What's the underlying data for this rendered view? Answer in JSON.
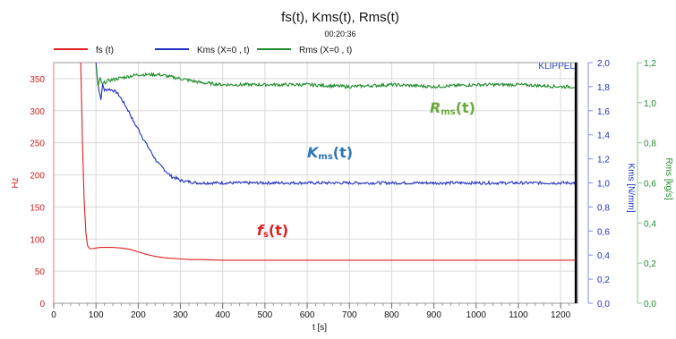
{
  "chart_data": {
    "type": "line",
    "title": "fs(t), Kms(t), Rms(t)",
    "subtitle": "00:20:36",
    "xlabel": "t [s]",
    "x_ticks": [
      "0",
      "100",
      "200",
      "300",
      "400",
      "500",
      "600",
      "700",
      "800",
      "900",
      "1000",
      "1100",
      "1200"
    ],
    "xlim": [
      0,
      1240
    ],
    "grid": true,
    "legend_position": "top",
    "brand": "KLIPPEL",
    "cursor_x": 1236,
    "axes": {
      "left": {
        "label": "Hz",
        "color": "#d42020",
        "range": [
          0,
          375
        ],
        "ticks": [
          "0",
          "50",
          "100",
          "150",
          "200",
          "250",
          "300",
          "350"
        ]
      },
      "right1": {
        "label": "Kms [N/mm]",
        "color": "#1f2fbf",
        "range": [
          0,
          2.0
        ],
        "ticks": [
          "0,0",
          "0,2",
          "0,4",
          "0,6",
          "0,8",
          "1,0",
          "1,2",
          "1,4",
          "1,6",
          "1,8",
          "2,0"
        ]
      },
      "right2": {
        "label": "Rms [kg/s]",
        "color": "#1e8a2a",
        "range": [
          0,
          1.2
        ],
        "ticks": [
          "0,0",
          "0,2",
          "0,4",
          "0,6",
          "0,8",
          "1,0",
          "1,2"
        ]
      }
    },
    "series": [
      {
        "name": "fs (t)",
        "axis": "left",
        "color": "#e02020",
        "x": [
          64,
          68,
          72,
          76,
          80,
          85,
          90,
          100,
          110,
          120,
          140,
          160,
          180,
          200,
          220,
          240,
          260,
          280,
          300,
          320,
          350,
          400,
          500,
          600,
          700,
          800,
          900,
          1000,
          1100,
          1200,
          1236
        ],
        "y": [
          375,
          250,
          160,
          110,
          90,
          85,
          85,
          86,
          87,
          87,
          87,
          86,
          84,
          80,
          76,
          73,
          71,
          70,
          69,
          68,
          68,
          67,
          67,
          67,
          67,
          67,
          67,
          67,
          67,
          67,
          67
        ]
      },
      {
        "name": "Kms (X=0 , t)",
        "axis": "right1",
        "color": "#1f2fbf",
        "x": [
          100,
          104,
          108,
          112,
          116,
          120,
          130,
          140,
          150,
          160,
          170,
          180,
          190,
          200,
          210,
          220,
          230,
          240,
          250,
          260,
          270,
          280,
          290,
          300,
          320,
          340,
          360,
          380,
          400,
          500,
          600,
          700,
          800,
          900,
          1000,
          1100,
          1200,
          1236
        ],
        "y": [
          2.0,
          1.85,
          1.75,
          1.7,
          1.82,
          1.77,
          1.78,
          1.77,
          1.75,
          1.7,
          1.64,
          1.58,
          1.5,
          1.45,
          1.38,
          1.32,
          1.26,
          1.2,
          1.15,
          1.12,
          1.08,
          1.05,
          1.04,
          1.02,
          1.01,
          1.0,
          1.0,
          1.0,
          1.0,
          1.0,
          1.0,
          1.0,
          1.0,
          1.0,
          1.0,
          1.0,
          1.0,
          1.0
        ],
        "noise": 0.012
      },
      {
        "name": "Rms (X=0 , t)",
        "axis": "right2",
        "color": "#1e8a2a",
        "x": [
          100,
          105,
          110,
          115,
          120,
          130,
          150,
          200,
          250,
          300,
          350,
          400,
          500,
          600,
          700,
          800,
          900,
          1000,
          1100,
          1200,
          1236
        ],
        "y": [
          1.18,
          1.08,
          1.12,
          1.09,
          1.1,
          1.11,
          1.12,
          1.14,
          1.14,
          1.12,
          1.1,
          1.09,
          1.09,
          1.09,
          1.08,
          1.09,
          1.08,
          1.09,
          1.09,
          1.08,
          1.08
        ],
        "noise": 0.008
      }
    ],
    "annotations": [
      {
        "html": "<tspan font-style='italic'>R</tspan><tspan font-size='10' dy='2'>ms</tspan><tspan dy='-2'>(t)</tspan>",
        "color": "#6aaa3a",
        "series": "Rms (X=0 , t)"
      },
      {
        "html": "<tspan font-style='italic'>K</tspan><tspan font-size='10' dy='2'>ms</tspan><tspan dy='-2'>(t)</tspan>",
        "color": "#2e75b6",
        "series": "Kms (X=0 , t)"
      },
      {
        "html": "<tspan font-style='italic'>f</tspan><tspan font-size='10' dy='2'>s</tspan><tspan dy='-2'>(t)</tspan>",
        "color": "#e02020",
        "series": "fs (t)"
      }
    ]
  }
}
